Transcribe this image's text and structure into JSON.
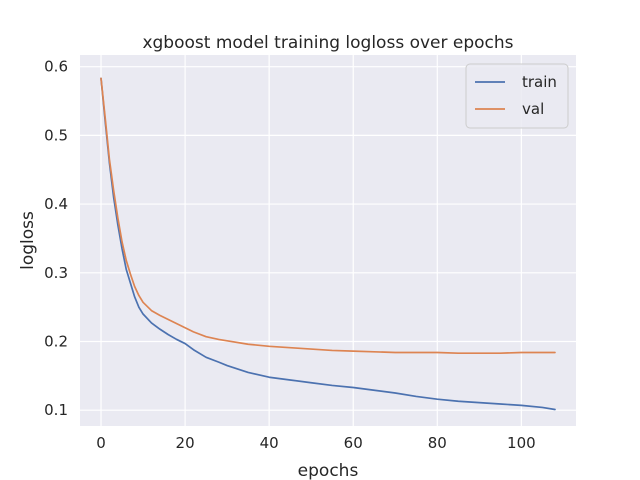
{
  "chart_data": {
    "type": "line",
    "title": "xgboost model training logloss over epochs",
    "xlabel": "epochs",
    "ylabel": "logloss",
    "xlim": [
      -5,
      113
    ],
    "ylim": [
      0.077,
      0.617
    ],
    "xticks": [
      0,
      20,
      40,
      60,
      80,
      100
    ],
    "yticks": [
      0.1,
      0.2,
      0.3,
      0.4,
      0.5,
      0.6
    ],
    "xtick_labels": [
      "0",
      "20",
      "40",
      "60",
      "80",
      "100"
    ],
    "ytick_labels": [
      "0.1",
      "0.2",
      "0.3",
      "0.4",
      "0.5",
      "0.6"
    ],
    "grid": true,
    "legend_position": "top-right",
    "background": "#eaeaf2",
    "series": [
      {
        "name": "train",
        "color": "#4c72b0",
        "x": [
          0,
          1,
          2,
          3,
          4,
          5,
          6,
          7,
          8,
          9,
          10,
          12,
          14,
          16,
          18,
          20,
          22,
          25,
          28,
          30,
          35,
          40,
          45,
          50,
          55,
          60,
          65,
          70,
          75,
          80,
          85,
          90,
          95,
          100,
          105,
          108
        ],
        "y": [
          0.583,
          0.52,
          0.46,
          0.41,
          0.37,
          0.335,
          0.305,
          0.285,
          0.265,
          0.25,
          0.24,
          0.227,
          0.218,
          0.21,
          0.203,
          0.197,
          0.188,
          0.177,
          0.17,
          0.165,
          0.155,
          0.148,
          0.144,
          0.14,
          0.136,
          0.133,
          0.129,
          0.125,
          0.12,
          0.116,
          0.113,
          0.111,
          0.109,
          0.107,
          0.104,
          0.101
        ]
      },
      {
        "name": "val",
        "color": "#dd8452",
        "x": [
          0,
          1,
          2,
          3,
          4,
          5,
          6,
          7,
          8,
          9,
          10,
          12,
          14,
          16,
          18,
          20,
          22,
          25,
          28,
          30,
          35,
          40,
          45,
          50,
          55,
          60,
          65,
          70,
          75,
          80,
          85,
          90,
          95,
          100,
          105,
          108
        ],
        "y": [
          0.583,
          0.525,
          0.465,
          0.42,
          0.38,
          0.345,
          0.318,
          0.298,
          0.28,
          0.267,
          0.257,
          0.245,
          0.238,
          0.232,
          0.226,
          0.22,
          0.214,
          0.207,
          0.203,
          0.201,
          0.196,
          0.193,
          0.191,
          0.189,
          0.187,
          0.186,
          0.185,
          0.184,
          0.184,
          0.184,
          0.183,
          0.183,
          0.183,
          0.184,
          0.184,
          0.184
        ]
      }
    ]
  }
}
